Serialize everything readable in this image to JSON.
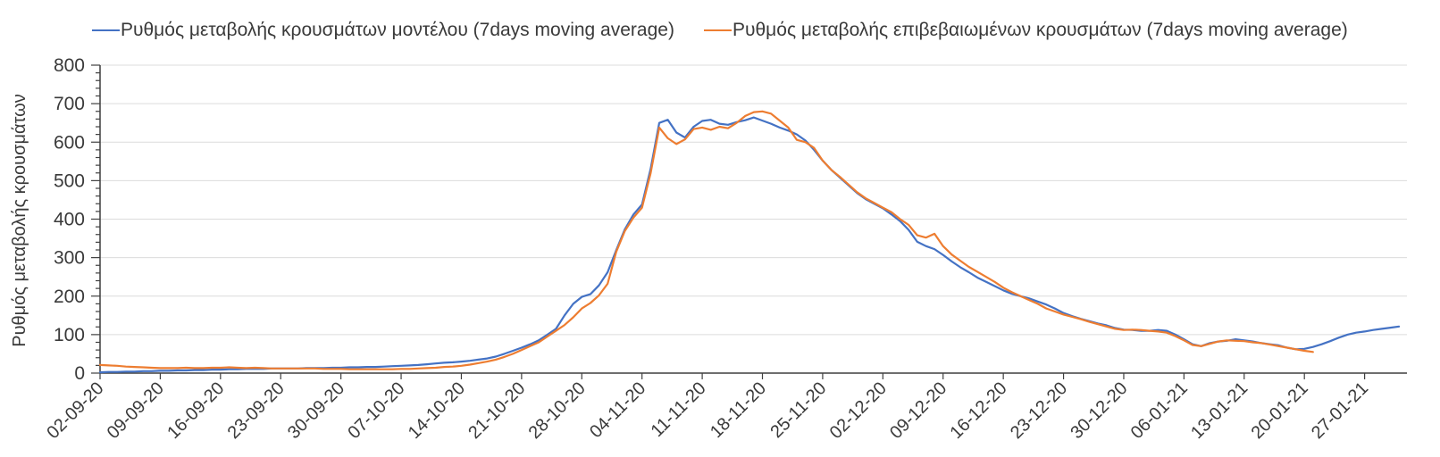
{
  "chart_data": {
    "type": "line",
    "title": "",
    "xlabel": "",
    "ylabel": "Ρυθμός μεταβολής κρουσμάτων",
    "ylim": [
      0,
      800
    ],
    "y_ticks": [
      0,
      100,
      200,
      300,
      400,
      500,
      600,
      700,
      800
    ],
    "y_minor_tick_step": 20,
    "grid": "horizontal-light-gray",
    "legend_position": "top",
    "x_tick_day_interval": 7,
    "x_tick_labels": [
      "02-09-20",
      "09-09-20",
      "16-09-20",
      "23-09-20",
      "30-09-20",
      "07-10-20",
      "14-10-20",
      "21-10-20",
      "28-10-20",
      "04-11-20",
      "11-11-20",
      "18-11-20",
      "25-11-20",
      "02-12-20",
      "09-12-20",
      "16-12-20",
      "23-12-20",
      "30-12-20",
      "06-01-21",
      "13-01-21",
      "20-01-21",
      "27-01-21"
    ],
    "frequency": "daily (7-day moving average)",
    "series": [
      {
        "name": "Ρυθμός μεταβολής κρουσμάτων μοντέλου (7days moving average)",
        "color": "#4472C4",
        "start_date": "02-09-20",
        "end_date": "31-01-21",
        "values": [
          2,
          3,
          3,
          4,
          4,
          5,
          5,
          6,
          6,
          7,
          7,
          8,
          8,
          9,
          9,
          10,
          10,
          11,
          11,
          11,
          12,
          12,
          12,
          12,
          13,
          13,
          13,
          14,
          14,
          15,
          15,
          16,
          16,
          17,
          18,
          19,
          20,
          21,
          23,
          25,
          27,
          28,
          30,
          32,
          35,
          38,
          43,
          50,
          58,
          66,
          75,
          85,
          100,
          115,
          150,
          180,
          198,
          205,
          228,
          262,
          319,
          373,
          412,
          438,
          530,
          650,
          658,
          625,
          612,
          640,
          655,
          658,
          648,
          645,
          652,
          657,
          664,
          656,
          648,
          638,
          630,
          620,
          604,
          580,
          552,
          528,
          508,
          488,
          468,
          452,
          440,
          428,
          412,
          395,
          372,
          341,
          330,
          322,
          307,
          290,
          275,
          262,
          248,
          237,
          226,
          215,
          206,
          200,
          194,
          186,
          178,
          168,
          156,
          148,
          141,
          135,
          129,
          124,
          117,
          113,
          112,
          110,
          110,
          112,
          110,
          100,
          88,
          75,
          70,
          78,
          82,
          84,
          88,
          85,
          82,
          78,
          75,
          72,
          66,
          62,
          63,
          68,
          75,
          83,
          92,
          100,
          105,
          108,
          112,
          115,
          118,
          121
        ]
      },
      {
        "name": "Ρυθμός μεταβολής επιβεβαιωμένων κρουσμάτων (7days moving average)",
        "color": "#ED7D31",
        "start_date": "02-09-20",
        "end_date": "21-01-21",
        "values": [
          21,
          20,
          19,
          17,
          16,
          15,
          14,
          13,
          13,
          13,
          14,
          13,
          13,
          14,
          14,
          15,
          14,
          13,
          14,
          13,
          12,
          12,
          12,
          12,
          12,
          12,
          11,
          11,
          11,
          10,
          10,
          10,
          10,
          10,
          10,
          11,
          11,
          12,
          13,
          14,
          16,
          17,
          19,
          22,
          26,
          30,
          35,
          42,
          50,
          60,
          70,
          80,
          95,
          110,
          125,
          145,
          168,
          182,
          202,
          232,
          315,
          369,
          404,
          430,
          519,
          638,
          610,
          595,
          607,
          634,
          638,
          632,
          640,
          636,
          650,
          668,
          678,
          680,
          674,
          656,
          638,
          606,
          600,
          585,
          552,
          528,
          510,
          490,
          470,
          454,
          442,
          430,
          418,
          400,
          385,
          358,
          352,
          362,
          330,
          308,
          292,
          276,
          263,
          250,
          237,
          222,
          210,
          200,
          190,
          180,
          168,
          160,
          152,
          146,
          140,
          133,
          127,
          121,
          115,
          112,
          113,
          112,
          110,
          108,
          105,
          96,
          85,
          73,
          70,
          76,
          82,
          85,
          84,
          83,
          80,
          78,
          74,
          70,
          66,
          62,
          58,
          55
        ]
      }
    ],
    "colors": {
      "grid": "#dcdcdc",
      "axis": "#3f3f3f",
      "tick_text": "#3a3a3a"
    }
  }
}
